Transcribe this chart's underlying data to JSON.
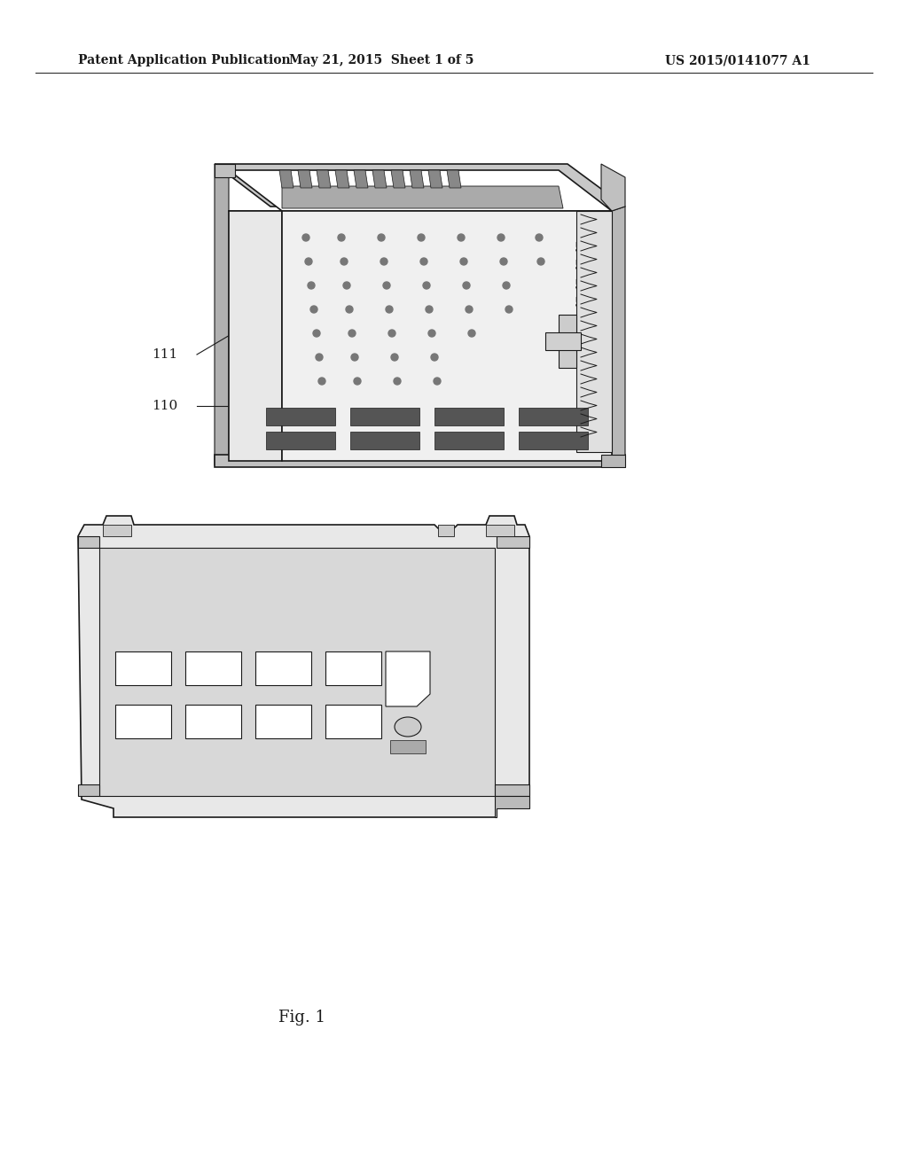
{
  "background_color": "#ffffff",
  "header_left": "Patent Application Publication",
  "header_center": "May 21, 2015  Sheet 1 of 5",
  "header_right": "US 2015/0141077 A1",
  "footer_label": "Fig. 1",
  "fig_width": 10.24,
  "fig_height": 13.2,
  "header_fontsize": 10,
  "footer_fontsize": 13,
  "label_fontsize": 11,
  "color": "#1a1a1a"
}
